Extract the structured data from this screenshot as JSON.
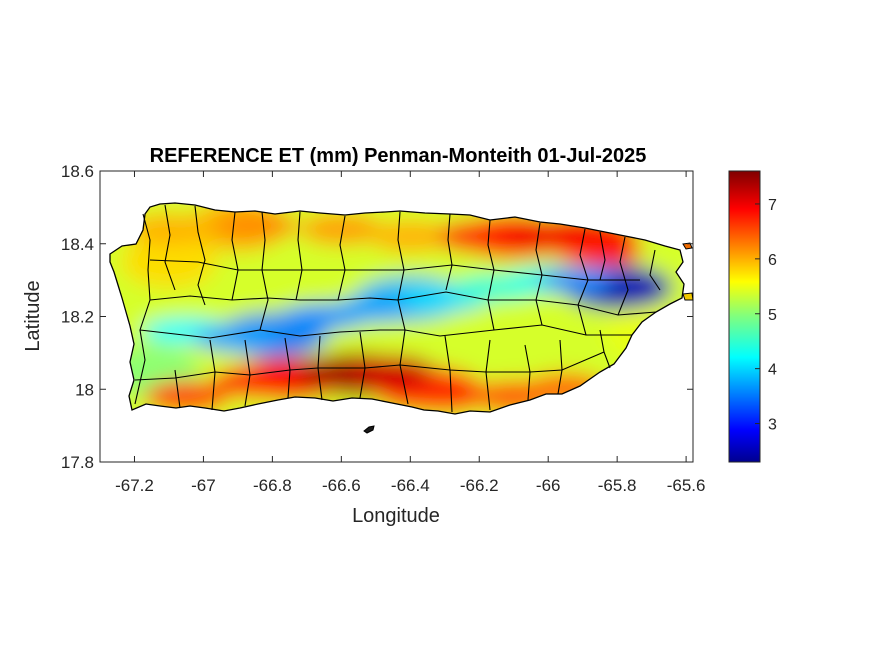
{
  "title": "REFERENCE ET (mm) Penman-Monteith 01-Jul-2025",
  "map": {
    "xlabel": "Longitude",
    "ylabel": "Latitude",
    "xlim": [
      -67.3,
      -65.58
    ],
    "ylim": [
      17.8,
      18.6
    ],
    "x_ticks": [
      "-67.2",
      "-67",
      "-66.8",
      "-66.6",
      "-66.4",
      "-66.2",
      "-66",
      "-65.8",
      "-65.6"
    ],
    "y_ticks": [
      "18.6",
      "18.4",
      "18.2",
      "18",
      "17.8"
    ],
    "colormap": "jet",
    "grid": false
  },
  "colorbar": {
    "range": [
      2.3,
      7.6
    ],
    "tick_labels": [
      "7",
      "6",
      "5",
      "4",
      "3"
    ]
  },
  "chart_data": {
    "type": "heatmap",
    "title": "REFERENCE ET (mm) Penman-Monteith 01-Jul-2025",
    "xlabel": "Longitude",
    "ylabel": "Latitude",
    "xlim": [
      -67.3,
      -65.58
    ],
    "ylim": [
      17.8,
      18.6
    ],
    "x_ticks": [
      -67.2,
      -67,
      -66.8,
      -66.6,
      -66.4,
      -66.2,
      -66,
      -65.8,
      -65.6
    ],
    "y_ticks": [
      17.8,
      18,
      18.2,
      18.4,
      18.6
    ],
    "colorbar_ticks": [
      3,
      4,
      5,
      6,
      7
    ],
    "value_range": [
      2.3,
      7.6
    ],
    "regions": [
      {
        "lon": -66.55,
        "lat": 18.04,
        "value": 7.4
      },
      {
        "lon": -66.75,
        "lat": 18.03,
        "value": 7.0
      },
      {
        "lon": -66.35,
        "lat": 18.0,
        "value": 6.8
      },
      {
        "lon": -66.1,
        "lat": 18.42,
        "value": 6.9
      },
      {
        "lon": -65.9,
        "lat": 18.42,
        "value": 7.0
      },
      {
        "lon": -65.8,
        "lat": 18.28,
        "value": 2.6
      },
      {
        "lon": -66.8,
        "lat": 18.15,
        "value": 3.6
      },
      {
        "lon": -66.4,
        "lat": 18.25,
        "value": 3.9
      },
      {
        "lon": -67.1,
        "lat": 18.35,
        "value": 5.8
      },
      {
        "lon": -66.9,
        "lat": 18.45,
        "value": 6.0
      },
      {
        "lon": -65.7,
        "lat": 18.15,
        "value": 5.5
      },
      {
        "lon": -67.15,
        "lat": 18.05,
        "value": 5.0
      }
    ]
  }
}
